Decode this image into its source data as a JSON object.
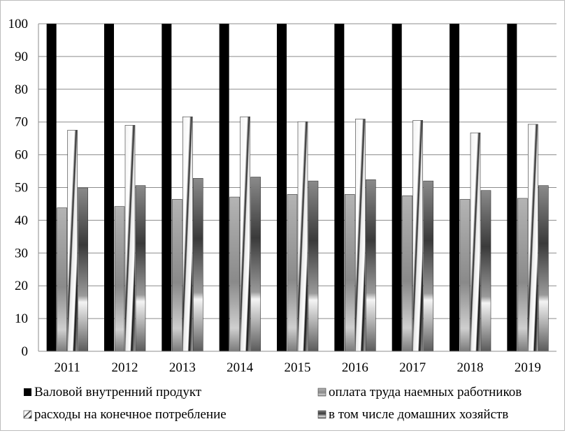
{
  "chart_data": {
    "type": "bar",
    "categories": [
      "2011",
      "2012",
      "2013",
      "2014",
      "2015",
      "2016",
      "2017",
      "2018",
      "2019"
    ],
    "series": [
      {
        "name": "Валовой внутренний продукт",
        "values": [
          100,
          100,
          100,
          100,
          100,
          100,
          100,
          100,
          100
        ]
      },
      {
        "name": "оплата труда наемных работников",
        "values": [
          43.8,
          44.2,
          46.4,
          47.1,
          47.9,
          47.9,
          47.5,
          46.4,
          46.7
        ]
      },
      {
        "name": "расходы на конечное потребление",
        "values": [
          67.5,
          69.0,
          71.6,
          71.6,
          70.1,
          70.9,
          70.5,
          66.7,
          69.3
        ]
      },
      {
        "name": "в том числе домашних хозяйств",
        "values": [
          49.9,
          50.6,
          52.8,
          53.2,
          52.0,
          52.4,
          52.0,
          49.1,
          50.6
        ]
      }
    ],
    "yticks": [
      "0",
      "10",
      "20",
      "30",
      "40",
      "50",
      "60",
      "70",
      "80",
      "90",
      "100"
    ],
    "ylim": [
      0,
      100
    ],
    "grid": true,
    "legend_position": "bottom",
    "title": "",
    "xlabel": "",
    "ylabel": ""
  }
}
